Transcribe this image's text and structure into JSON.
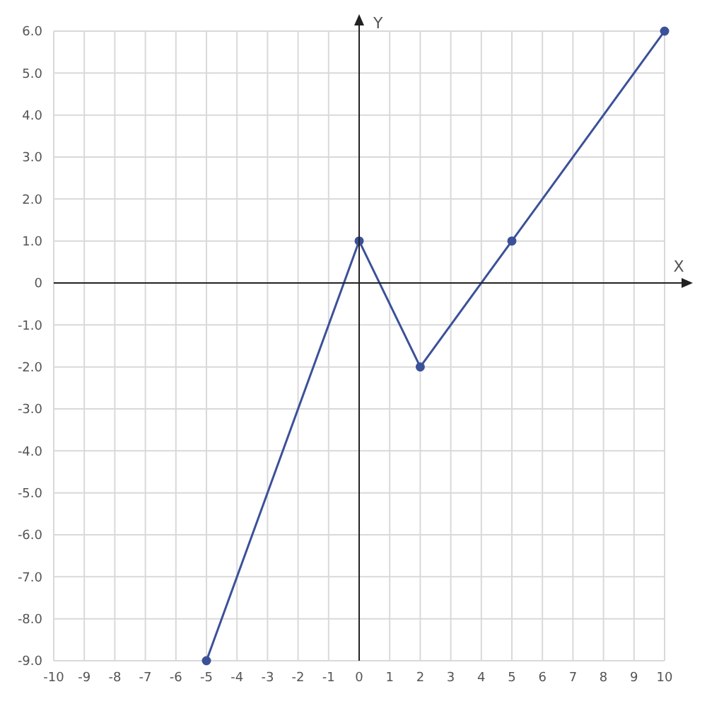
{
  "chart_data": {
    "type": "line",
    "xlabel": "X",
    "ylabel": "Y",
    "x": [
      -5,
      0,
      2,
      5,
      10
    ],
    "series": [
      {
        "color": "#3b5199",
        "values": [
          -9,
          1,
          -2,
          1,
          6
        ]
      }
    ],
    "xlim": [
      -10,
      10
    ],
    "xticks": [
      -10,
      -9,
      -8,
      -7,
      -6,
      -5,
      -4,
      -3,
      -2,
      -1,
      0,
      1,
      2,
      3,
      4,
      5,
      6,
      7,
      8,
      9,
      10
    ],
    "ylim": [
      -9,
      6
    ],
    "yticks": [
      {
        "value": 6,
        "label": "6.0"
      },
      {
        "value": 5,
        "label": "5.0"
      },
      {
        "value": 4,
        "label": "4.0"
      },
      {
        "value": 3,
        "label": "3.0"
      },
      {
        "value": 2,
        "label": "2.0"
      },
      {
        "value": 1,
        "label": "1.0"
      },
      {
        "value": 0,
        "label": "0"
      },
      {
        "value": -1,
        "label": "-1.0"
      },
      {
        "value": -2,
        "label": "-2.0"
      },
      {
        "value": -3,
        "label": "-3.0"
      },
      {
        "value": -4,
        "label": "-4.0"
      },
      {
        "value": -5,
        "label": "-5.0"
      },
      {
        "value": -6,
        "label": "-6.0"
      },
      {
        "value": -7,
        "label": "-7.0"
      },
      {
        "value": -8,
        "label": "-8.0"
      },
      {
        "value": -9,
        "label": "-9.0"
      }
    ],
    "grid": true,
    "marker": "circle",
    "line_style": "solid",
    "legend": false
  }
}
